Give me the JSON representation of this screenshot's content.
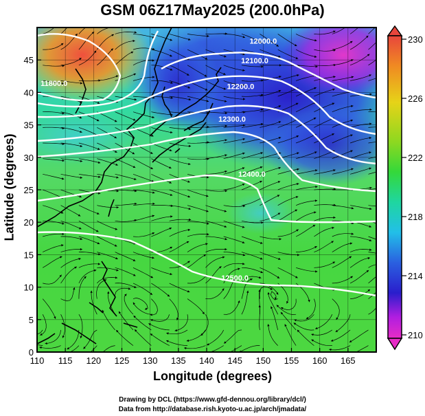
{
  "title": "GSM 06Z17May2025 (200.0hPa)",
  "xlabel": "Longitude (degrees)",
  "ylabel": "Latitude  (degrees)",
  "credits": [
    "Drawing by DCL (https://www.gfd-dennou.org/library/dcl/)",
    "Data from http://database.rish.kyoto-u.ac.jp/arch/jmadata/"
  ],
  "map": {
    "lon_range": [
      110,
      170
    ],
    "lat_range": [
      0,
      50
    ],
    "lon_ticks": [
      "110",
      "115",
      "120",
      "125",
      "130",
      "135",
      "140",
      "145",
      "150",
      "155",
      "160",
      "165"
    ],
    "lat_ticks": [
      "0",
      "5",
      "10",
      "15",
      "20",
      "25",
      "30",
      "35",
      "40",
      "45"
    ]
  },
  "colorbar": {
    "labels": [
      "230",
      "226",
      "222",
      "218",
      "214",
      "210"
    ],
    "colors": [
      "#e8463c",
      "#f08a22",
      "#e6d318",
      "#5cd92a",
      "#1fd67a",
      "#22bfe8",
      "#2a50e0",
      "#2a1ecc",
      "#b11ee0",
      "#e62cc6"
    ]
  },
  "contours": [
    {
      "label": "11800.0",
      "lon": 113,
      "lat": 41
    },
    {
      "label": "12000.0",
      "lon": 150,
      "lat": 47.5
    },
    {
      "label": "12100.0",
      "lon": 148.5,
      "lat": 44.5
    },
    {
      "label": "12200.0",
      "lon": 146,
      "lat": 40.5
    },
    {
      "label": "12300.0",
      "lon": 144.5,
      "lat": 35.5
    },
    {
      "label": "12400.0",
      "lon": 148,
      "lat": 27
    },
    {
      "label": "12500.0",
      "lon": 145,
      "lat": 11
    }
  ]
}
